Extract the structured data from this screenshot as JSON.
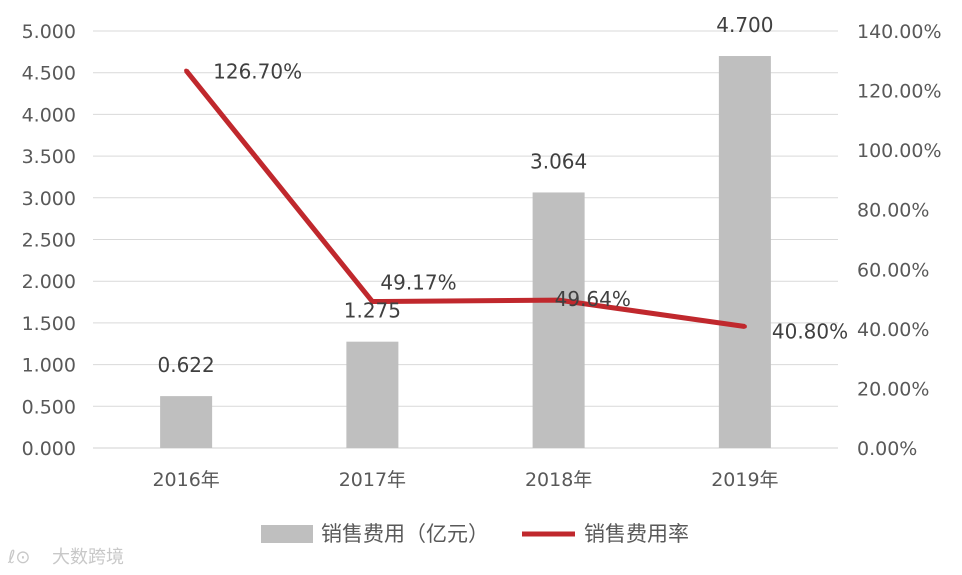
{
  "chart_data": {
    "type": "bar",
    "categories": [
      "2016年",
      "2017年",
      "2018年",
      "2019年"
    ],
    "series": [
      {
        "name": "销售费用（亿元）",
        "type": "bar",
        "axis": "left",
        "values": [
          0.622,
          1.275,
          3.064,
          4.7
        ],
        "labels": [
          "0.622",
          "1.275",
          "3.064",
          "4.700"
        ],
        "color": "#bfbfbf"
      },
      {
        "name": "销售费用率",
        "type": "line",
        "axis": "right",
        "values": [
          126.7,
          49.17,
          49.64,
          40.8
        ],
        "labels": [
          "126.70%",
          "49.17%",
          "49.64%",
          "40.80%"
        ],
        "color": "#c0282d"
      }
    ],
    "y_left": {
      "range": [
        0,
        5
      ],
      "ticks": [
        "0.000",
        "0.500",
        "1.000",
        "1.500",
        "2.000",
        "2.500",
        "3.000",
        "3.500",
        "4.000",
        "4.500",
        "5.000"
      ]
    },
    "y_right": {
      "range": [
        0,
        140
      ],
      "ticks": [
        "0.00%",
        "20.00%",
        "40.00%",
        "60.00%",
        "80.00%",
        "100.00%",
        "120.00%",
        "140.00%"
      ]
    },
    "grid": true,
    "legend_position": "bottom"
  },
  "watermark": {
    "text": "大数跨境"
  }
}
